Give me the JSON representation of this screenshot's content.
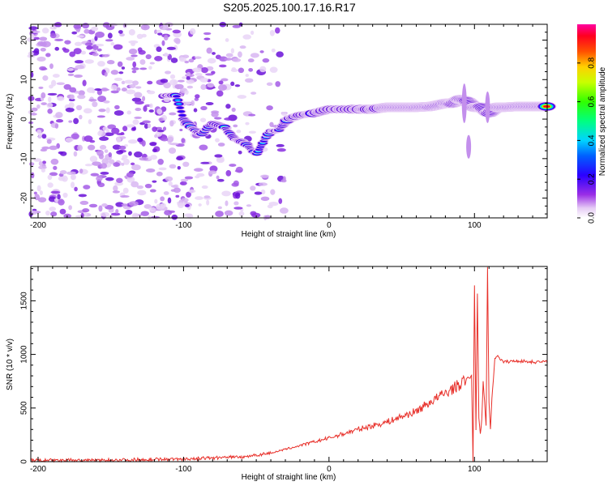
{
  "title": "S205.2025.100.17.16.R17",
  "chart_data": [
    {
      "type": "heatmap",
      "xlabel": "Height of straight line (km)",
      "ylabel": "Frequency (Hz)",
      "xlim": [
        -205,
        150
      ],
      "ylim": [
        -25,
        24
      ],
      "xticks": [
        -200,
        -100,
        0,
        100
      ],
      "yticks": [
        20,
        10,
        0,
        -10,
        -20
      ],
      "colorbar": {
        "label": "Normalized spectral amplitude",
        "range": [
          0,
          1
        ],
        "ticks": [
          0.0,
          0.2,
          0.4,
          0.6,
          0.8
        ]
      },
      "ridge": {
        "x": [
          -112,
          -105,
          -100,
          -95,
          -88,
          -80,
          -72,
          -65,
          -58,
          -50,
          -44,
          -40,
          -35,
          -28,
          -20,
          -10,
          0,
          10,
          20,
          30,
          40,
          50,
          60,
          70,
          80,
          85,
          90,
          95,
          100,
          105,
          110,
          115,
          120,
          130,
          140,
          150
        ],
        "y": [
          6,
          6,
          0,
          -2,
          -4,
          -1,
          -2,
          -5,
          -6,
          -9,
          -5,
          -3,
          -3,
          0,
          1,
          1.5,
          2.5,
          2.5,
          2.5,
          2.5,
          3,
          3,
          3,
          3.2,
          4,
          4,
          5,
          4.5,
          3,
          3,
          1.5,
          3,
          3,
          3.2,
          3.2,
          3.2
        ]
      }
    },
    {
      "type": "line",
      "xlabel": "Height of straight line (km)",
      "ylabel": "SNR (10 * v/v)",
      "xlim": [
        -205,
        150
      ],
      "ylim": [
        0,
        1820
      ],
      "xticks": [
        -200,
        -100,
        0,
        100
      ],
      "yticks": [
        0,
        500,
        1000,
        1500
      ],
      "series": [
        {
          "color": "#e8302a",
          "x": [
            -205,
            -150,
            -100,
            -80,
            -60,
            -40,
            -20,
            0,
            20,
            40,
            60,
            70,
            80,
            90,
            96,
            98,
            99,
            100,
            101,
            102,
            103,
            104,
            105,
            106,
            108,
            109,
            110,
            111,
            112,
            114,
            116,
            118,
            120,
            130,
            140,
            150
          ],
          "y": [
            10,
            15,
            25,
            35,
            45,
            80,
            150,
            220,
            300,
            370,
            470,
            560,
            640,
            720,
            780,
            800,
            0,
            1650,
            300,
            1580,
            400,
            250,
            400,
            750,
            350,
            1800,
            550,
            300,
            600,
            950,
            1000,
            950,
            930,
            940,
            930,
            930
          ]
        }
      ]
    }
  ]
}
